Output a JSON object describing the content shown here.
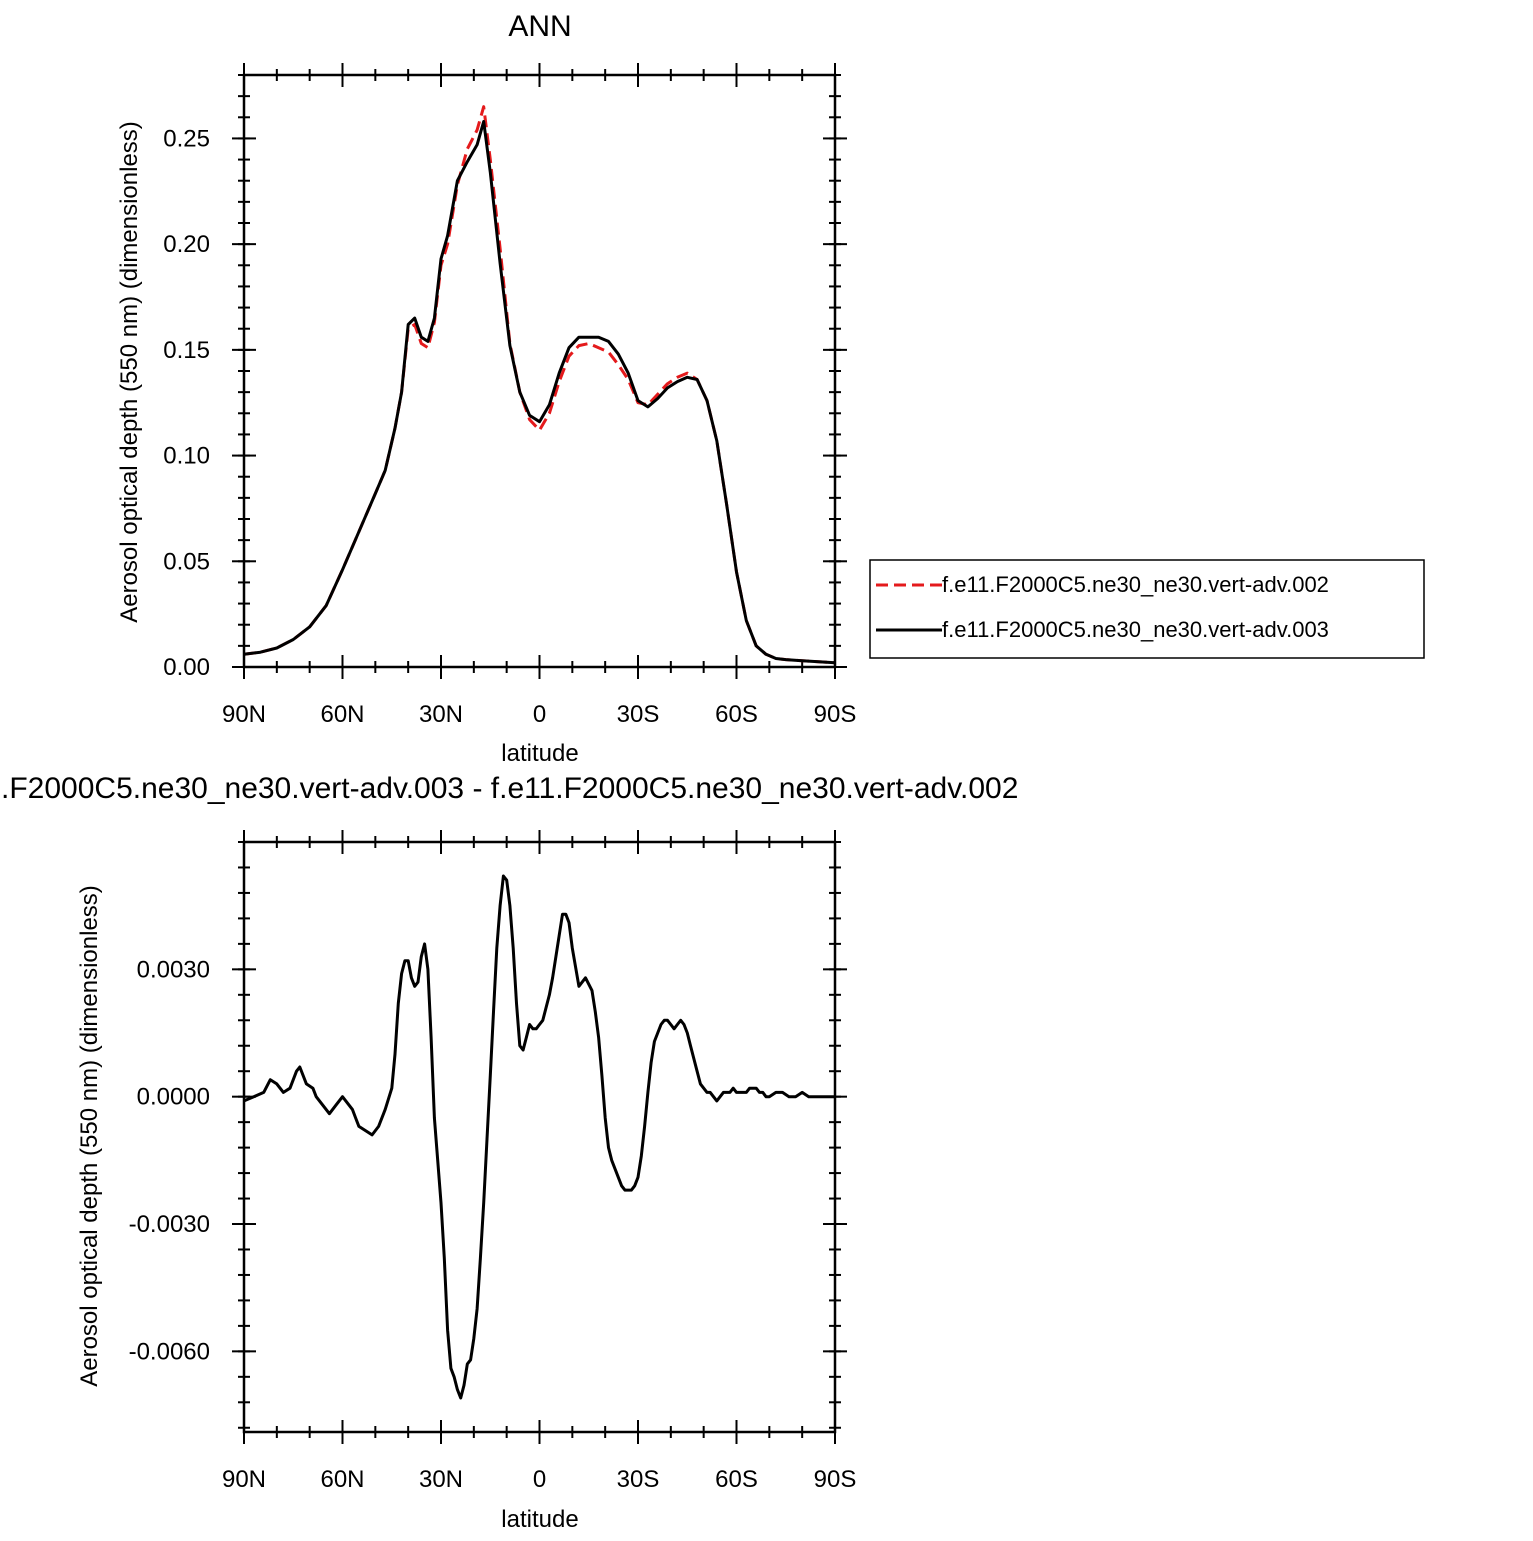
{
  "chart_data": [
    {
      "type": "line",
      "title": "ANN",
      "xlabel": "latitude",
      "ylabel": "Aerosol optical depth (550 nm) (dimensionless)",
      "xlim": [
        90,
        -90
      ],
      "ylim": [
        0,
        0.28
      ],
      "xticks": [
        {
          "v": 90,
          "label": "90N"
        },
        {
          "v": 60,
          "label": "60N"
        },
        {
          "v": 30,
          "label": "30N"
        },
        {
          "v": 0,
          "label": "0"
        },
        {
          "v": -30,
          "label": "30S"
        },
        {
          "v": -60,
          "label": "60S"
        },
        {
          "v": -90,
          "label": "90S"
        }
      ],
      "yticks": [
        {
          "v": 0,
          "label": "0.00"
        },
        {
          "v": 0.05,
          "label": "0.05"
        },
        {
          "v": 0.1,
          "label": "0.10"
        },
        {
          "v": 0.15,
          "label": "0.15"
        },
        {
          "v": 0.2,
          "label": "0.20"
        },
        {
          "v": 0.25,
          "label": "0.25"
        }
      ],
      "legend_position": "right",
      "series": [
        {
          "name": "f.e11.F2000C5.ne30_ne30.vert-adv.002",
          "color": "#e41a1c",
          "dash": "dashed",
          "x": [
            90,
            85,
            80,
            75,
            70,
            65,
            60,
            55,
            50,
            47,
            44,
            42,
            40,
            38,
            36,
            34,
            32,
            30,
            28,
            25,
            22,
            19,
            17,
            15,
            12,
            9,
            6,
            3,
            0,
            -3,
            -6,
            -9,
            -12,
            -15,
            -18,
            -21,
            -24,
            -27,
            -30,
            -33,
            -36,
            -39,
            -42,
            -45,
            -48,
            -51,
            -54,
            -57,
            -60,
            -63,
            -66,
            -69,
            -72,
            -75,
            -80,
            -85,
            -90
          ],
          "y": [
            0.006,
            0.007,
            0.009,
            0.013,
            0.019,
            0.029,
            0.046,
            0.064,
            0.082,
            0.093,
            0.113,
            0.13,
            0.16,
            0.162,
            0.153,
            0.151,
            0.163,
            0.19,
            0.2,
            0.228,
            0.245,
            0.254,
            0.265,
            0.24,
            0.198,
            0.153,
            0.13,
            0.117,
            0.112,
            0.12,
            0.135,
            0.147,
            0.152,
            0.153,
            0.151,
            0.149,
            0.143,
            0.136,
            0.125,
            0.124,
            0.129,
            0.134,
            0.137,
            0.139,
            0.136,
            0.126,
            0.107,
            0.077,
            0.045,
            0.022,
            0.01,
            0.006,
            0.004,
            0.0035,
            0.003,
            0.0025,
            0.002
          ]
        },
        {
          "name": "f.e11.F2000C5.ne30_ne30.vert-adv.003",
          "color": "#000000",
          "dash": "solid",
          "x": [
            90,
            85,
            80,
            75,
            70,
            65,
            60,
            55,
            50,
            47,
            44,
            42,
            40,
            38,
            36,
            34,
            32,
            30,
            28,
            25,
            22,
            19,
            17,
            15,
            12,
            9,
            6,
            3,
            0,
            -3,
            -6,
            -9,
            -12,
            -15,
            -18,
            -21,
            -24,
            -27,
            -30,
            -33,
            -36,
            -39,
            -42,
            -45,
            -48,
            -51,
            -54,
            -57,
            -60,
            -63,
            -66,
            -69,
            -72,
            -75,
            -80,
            -85,
            -90
          ],
          "y": [
            0.006,
            0.007,
            0.009,
            0.013,
            0.019,
            0.029,
            0.046,
            0.064,
            0.082,
            0.093,
            0.113,
            0.13,
            0.162,
            0.165,
            0.156,
            0.154,
            0.165,
            0.193,
            0.204,
            0.23,
            0.239,
            0.247,
            0.258,
            0.234,
            0.191,
            0.152,
            0.13,
            0.119,
            0.116,
            0.124,
            0.139,
            0.151,
            0.156,
            0.156,
            0.156,
            0.154,
            0.148,
            0.139,
            0.126,
            0.123,
            0.127,
            0.132,
            0.135,
            0.137,
            0.136,
            0.126,
            0.107,
            0.077,
            0.045,
            0.022,
            0.01,
            0.006,
            0.004,
            0.0035,
            0.003,
            0.0025,
            0.002
          ]
        }
      ]
    },
    {
      "type": "line",
      "title": ".F2000C5.ne30_ne30.vert-adv.003 - f.e11.F2000C5.ne30_ne30.vert-adv.002",
      "xlabel": "latitude",
      "ylabel": "Aerosol optical depth (550 nm) (dimensionless)",
      "xlim": [
        90,
        -90
      ],
      "ylim": [
        -0.0079,
        0.006
      ],
      "xticks": [
        {
          "v": 90,
          "label": "90N"
        },
        {
          "v": 60,
          "label": "60N"
        },
        {
          "v": 30,
          "label": "30N"
        },
        {
          "v": 0,
          "label": "0"
        },
        {
          "v": -30,
          "label": "30S"
        },
        {
          "v": -60,
          "label": "60S"
        },
        {
          "v": -90,
          "label": "90S"
        }
      ],
      "yticks": [
        {
          "v": -0.006,
          "label": "-0.0060"
        },
        {
          "v": -0.003,
          "label": "-0.0030"
        },
        {
          "v": 0,
          "label": "0.0000"
        },
        {
          "v": 0.003,
          "label": "0.0030"
        }
      ],
      "series": [
        {
          "name": "",
          "color": "#000000",
          "dash": "solid",
          "x": [
            90,
            87,
            84,
            82,
            80,
            78,
            76,
            74,
            73,
            71,
            69,
            68,
            66,
            64,
            62,
            60,
            59,
            57,
            56,
            55,
            53,
            51,
            49,
            47,
            45,
            44,
            43,
            42,
            41,
            40,
            39,
            38,
            37,
            36,
            35,
            34,
            33,
            32,
            31,
            30,
            29,
            28,
            27,
            26,
            25,
            24,
            23,
            22,
            21,
            20,
            19,
            18,
            17,
            16,
            15,
            14,
            13,
            12,
            11,
            10,
            9,
            8,
            7,
            6,
            5,
            4,
            3,
            2,
            1,
            0,
            -1,
            -2,
            -3,
            -4,
            -5,
            -6,
            -7,
            -8,
            -9,
            -10,
            -12,
            -14,
            -16,
            -17,
            -18,
            -19,
            -20,
            -21,
            -22,
            -23,
            -24,
            -25,
            -26,
            -27,
            -28,
            -29,
            -30,
            -31,
            -32,
            -33,
            -34,
            -35,
            -36,
            -37,
            -38,
            -39,
            -40,
            -41,
            -42,
            -43,
            -44,
            -45,
            -46,
            -47,
            -48,
            -49,
            -50,
            -51,
            -52,
            -53,
            -54,
            -55,
            -56,
            -57,
            -58,
            -59,
            -60,
            -61,
            -62,
            -63,
            -64,
            -65,
            -66,
            -67,
            -68,
            -69,
            -70,
            -72,
            -74,
            -76,
            -78,
            -80,
            -82,
            -84,
            -86,
            -88,
            -90
          ],
          "y": [
            -0.0001,
            0.0,
            0.0001,
            0.0004,
            0.0003,
            0.0001,
            0.0002,
            0.0006,
            0.0007,
            0.0003,
            0.0002,
            0.0,
            -0.0002,
            -0.0004,
            -0.0002,
            0.0,
            -0.0001,
            -0.0003,
            -0.0005,
            -0.0007,
            -0.0008,
            -0.0009,
            -0.0007,
            -0.0003,
            0.0002,
            0.001,
            0.0022,
            0.0029,
            0.0032,
            0.0032,
            0.0028,
            0.0026,
            0.0027,
            0.0033,
            0.0036,
            0.003,
            0.0014,
            -0.0005,
            -0.0015,
            -0.0025,
            -0.0038,
            -0.0055,
            -0.0064,
            -0.0066,
            -0.0069,
            -0.0071,
            -0.0068,
            -0.0063,
            -0.0062,
            -0.0057,
            -0.005,
            -0.0038,
            -0.0025,
            -0.001,
            0.0005,
            0.002,
            0.0035,
            0.0045,
            0.0052,
            0.0051,
            0.0045,
            0.0035,
            0.0022,
            0.0012,
            0.0011,
            0.0014,
            0.0017,
            0.0016,
            0.0016,
            0.0017,
            0.0018,
            0.0021,
            0.0024,
            0.0028,
            0.0033,
            0.0038,
            0.0043,
            0.0043,
            0.0041,
            0.0035,
            0.0026,
            0.0028,
            0.0025,
            0.002,
            0.0014,
            0.0005,
            -0.0005,
            -0.0012,
            -0.0015,
            -0.0017,
            -0.0019,
            -0.0021,
            -0.0022,
            -0.0022,
            -0.0022,
            -0.0021,
            -0.0019,
            -0.0014,
            -0.0007,
            0.0001,
            0.0008,
            0.0013,
            0.0015,
            0.0017,
            0.0018,
            0.0018,
            0.0017,
            0.0016,
            0.0017,
            0.0018,
            0.0017,
            0.0015,
            0.0012,
            0.0009,
            0.0006,
            0.0003,
            0.0002,
            0.0001,
            0.0001,
            0.0,
            -0.0001,
            0.0,
            0.0001,
            0.0001,
            0.0001,
            0.0002,
            0.0001,
            0.0001,
            0.0001,
            0.0001,
            0.0002,
            0.0002,
            0.0002,
            0.0001,
            0.0001,
            0.0,
            0.0,
            0.0001,
            0.0001,
            0.0,
            0.0,
            0.0001,
            0.0,
            0.0,
            0.0,
            0.0,
            0.0
          ]
        }
      ]
    }
  ]
}
